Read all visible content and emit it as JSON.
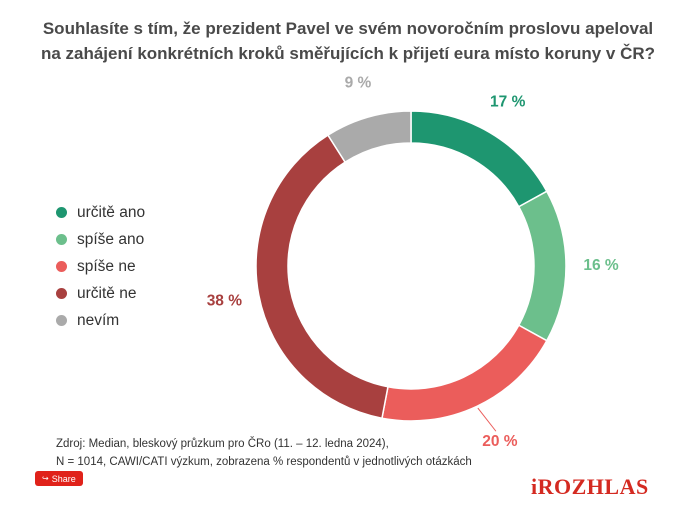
{
  "title": {
    "line1": "Souhlasíte s tím, že prezident Pavel ve svém novoročním proslovu apeloval",
    "line2": "na zahájení konkrétních kroků směřujících k přijetí eura místo koruny v ČR?"
  },
  "chart_data": {
    "type": "pie",
    "variant": "donut",
    "categories": [
      "určitě ano",
      "spíše ano",
      "spíše ne",
      "určitě ne",
      "nevím"
    ],
    "values": [
      17,
      16,
      20,
      38,
      9
    ],
    "labels": [
      "17 %",
      "16 %",
      "20 %",
      "38 %",
      "9 %"
    ],
    "colors": [
      "#1e9670",
      "#6cbf8c",
      "#eb5d5b",
      "#a8403f",
      "#aaaaaa"
    ],
    "legend_position": "left"
  },
  "source": {
    "line1": "Zdroj: Median, bleskový průzkum pro ČRo (11. – 12. ledna 2024),",
    "line2": "N = 1014, CAWI/CATI výzkum, zobrazena % respondentů v jednotlivých otázkách"
  },
  "share": {
    "label": "Share",
    "icon": "share-icon"
  },
  "logo": {
    "text": "iROZHLAS",
    "color": "#d42a21"
  }
}
